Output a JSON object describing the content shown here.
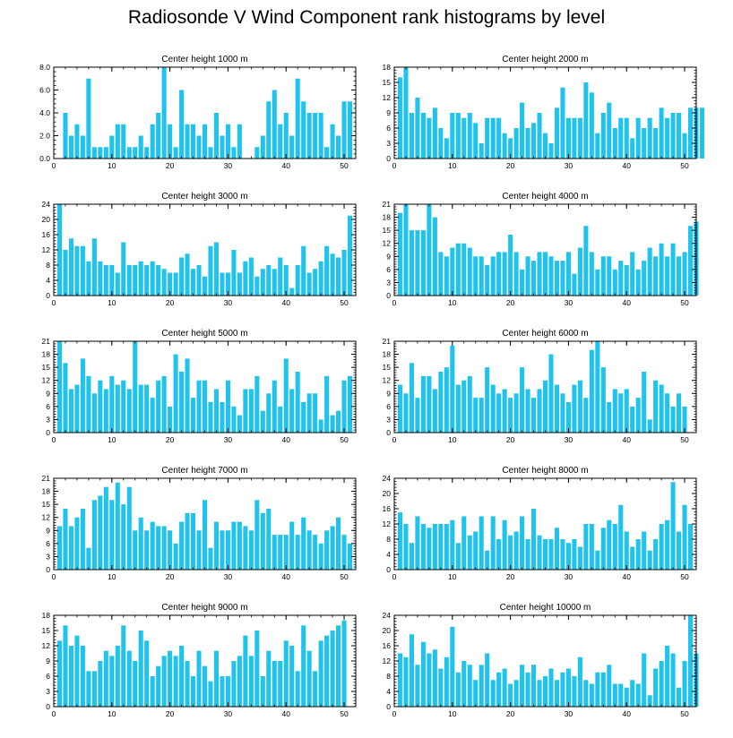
{
  "title": "Radiosonde V Wind Component rank histograms by level",
  "bar_color": "#1ec3ee",
  "chart_data": [
    {
      "type": "bar",
      "title": "Center height 1000 m",
      "xlabel": "",
      "ylabel": "",
      "xlim": [
        0,
        52
      ],
      "ylim": [
        0,
        8
      ],
      "yticks": [
        0,
        2,
        4,
        6,
        8
      ],
      "ytick_labels": [
        "0.0",
        "2.0",
        "4.0",
        "6.0",
        "8.0"
      ],
      "xticks": [
        0,
        10,
        20,
        30,
        40,
        50
      ],
      "values": [
        0,
        4,
        2,
        3,
        2,
        7,
        1,
        1,
        1,
        2,
        3,
        3,
        1,
        1,
        2,
        1,
        3,
        4,
        8,
        3,
        1,
        6,
        3,
        3,
        2,
        3,
        1,
        4,
        2,
        3,
        1,
        3,
        0,
        0,
        1,
        2,
        5,
        6,
        3,
        4,
        2,
        7,
        5,
        4,
        4,
        4,
        1,
        3,
        2,
        5,
        5
      ]
    },
    {
      "type": "bar",
      "title": "Center height 2000 m",
      "xlabel": "",
      "ylabel": "",
      "xlim": [
        0,
        52
      ],
      "ylim": [
        0,
        18
      ],
      "yticks": [
        0,
        3,
        6,
        9,
        12,
        15,
        18
      ],
      "ytick_labels": [
        "0",
        "3",
        "6",
        "9",
        "12",
        "15",
        "18"
      ],
      "xticks": [
        0,
        10,
        20,
        30,
        40,
        50
      ],
      "values": [
        16,
        18,
        9,
        12,
        9,
        8,
        10,
        6,
        4,
        9,
        9,
        8,
        9,
        7,
        3,
        8,
        8,
        8,
        5,
        4,
        6,
        11,
        6,
        7,
        9,
        5,
        3,
        10,
        14,
        8,
        8,
        8,
        15,
        13,
        5,
        9,
        11,
        6,
        8,
        8,
        4,
        8,
        6,
        8,
        6,
        10,
        8,
        9,
        9,
        5,
        10,
        10,
        10
      ]
    },
    {
      "type": "bar",
      "title": "Center height 3000 m",
      "xlabel": "",
      "ylabel": "",
      "xlim": [
        0,
        52
      ],
      "ylim": [
        0,
        24
      ],
      "yticks": [
        0,
        4,
        8,
        12,
        16,
        20,
        24
      ],
      "ytick_labels": [
        "0",
        "4",
        "8",
        "12",
        "16",
        "20",
        "24"
      ],
      "xticks": [
        0,
        10,
        20,
        30,
        40,
        50
      ],
      "values": [
        24,
        12,
        15,
        13,
        13,
        9,
        15,
        9,
        8,
        8,
        6,
        14,
        8,
        8,
        9,
        8,
        9,
        8,
        7,
        6,
        6,
        10,
        11,
        7,
        8,
        5,
        13,
        14,
        6,
        6,
        12,
        6,
        9,
        10,
        5,
        7,
        8,
        7,
        10,
        8,
        2,
        8,
        13,
        6,
        7,
        9,
        13,
        11,
        10,
        12,
        21
      ]
    },
    {
      "type": "bar",
      "title": "Center height 4000 m",
      "xlabel": "",
      "ylabel": "",
      "xlim": [
        0,
        52
      ],
      "ylim": [
        0,
        21
      ],
      "yticks": [
        0,
        3,
        6,
        9,
        12,
        15,
        18,
        21
      ],
      "ytick_labels": [
        "0",
        "3",
        "6",
        "9",
        "12",
        "15",
        "18",
        "21"
      ],
      "xticks": [
        0,
        10,
        20,
        30,
        40,
        50
      ],
      "values": [
        19,
        21,
        15,
        15,
        15,
        21,
        18,
        10,
        9,
        11,
        12,
        12,
        11,
        9,
        9,
        7,
        9,
        10,
        10,
        14,
        10,
        6,
        9,
        8,
        10,
        10,
        9,
        8,
        8,
        10,
        5,
        11,
        16,
        10,
        6,
        9,
        9,
        6,
        8,
        7,
        10,
        6,
        8,
        11,
        9,
        12,
        9,
        12,
        9,
        10,
        16,
        17
      ]
    },
    {
      "type": "bar",
      "title": "Center height 5000 m",
      "xlabel": "",
      "ylabel": "",
      "xlim": [
        0,
        52
      ],
      "ylim": [
        0,
        21
      ],
      "yticks": [
        0,
        3,
        6,
        9,
        12,
        15,
        18,
        21
      ],
      "ytick_labels": [
        "0",
        "3",
        "6",
        "9",
        "12",
        "15",
        "18",
        "21"
      ],
      "xticks": [
        0,
        10,
        20,
        30,
        40,
        50
      ],
      "values": [
        21,
        16,
        10,
        11,
        17,
        13,
        9,
        12,
        10,
        13,
        11,
        12,
        10,
        21,
        11,
        11,
        8,
        12,
        13,
        6,
        18,
        14,
        17,
        8,
        12,
        12,
        7,
        10,
        7,
        12,
        6,
        4,
        10,
        10,
        13,
        5,
        9,
        12,
        6,
        17,
        10,
        14,
        7,
        9,
        9,
        3,
        13,
        4,
        5,
        12,
        13
      ]
    },
    {
      "type": "bar",
      "title": "Center height 6000 m",
      "xlabel": "",
      "ylabel": "",
      "xlim": [
        0,
        52
      ],
      "ylim": [
        0,
        21
      ],
      "yticks": [
        0,
        3,
        6,
        9,
        12,
        15,
        18,
        21
      ],
      "ytick_labels": [
        "0",
        "3",
        "6",
        "9",
        "12",
        "15",
        "18",
        "21"
      ],
      "xticks": [
        0,
        10,
        20,
        30,
        40,
        50
      ],
      "values": [
        11,
        9,
        16,
        8,
        13,
        13,
        10,
        14,
        15,
        20,
        11,
        12,
        13,
        8,
        8,
        15,
        11,
        9,
        10,
        8,
        9,
        15,
        10,
        8,
        10,
        12,
        18,
        11,
        9,
        7,
        11,
        12,
        8,
        19,
        21,
        15,
        7,
        10,
        9,
        10,
        6,
        8,
        14,
        3,
        12,
        11,
        9,
        6,
        9,
        6
      ]
    },
    {
      "type": "bar",
      "title": "Center height 7000 m",
      "xlabel": "",
      "ylabel": "",
      "xlim": [
        0,
        52
      ],
      "ylim": [
        0,
        21
      ],
      "yticks": [
        0,
        3,
        6,
        9,
        12,
        15,
        18,
        21
      ],
      "ytick_labels": [
        "0",
        "3",
        "6",
        "9",
        "12",
        "15",
        "18",
        "21"
      ],
      "xticks": [
        0,
        10,
        20,
        30,
        40,
        50
      ],
      "values": [
        10,
        14,
        10,
        12,
        14,
        5,
        16,
        17,
        19,
        16,
        20,
        15,
        19,
        9,
        12,
        9,
        11,
        10,
        10,
        9,
        6,
        11,
        13,
        13,
        9,
        16,
        5,
        11,
        9,
        9,
        11,
        11,
        10,
        9,
        16,
        13,
        14,
        8,
        8,
        8,
        11,
        8,
        12,
        9,
        8,
        6,
        9,
        10,
        12,
        8,
        6
      ]
    },
    {
      "type": "bar",
      "title": "Center height 8000 m",
      "xlabel": "",
      "ylabel": "",
      "xlim": [
        0,
        52
      ],
      "ylim": [
        0,
        24
      ],
      "yticks": [
        0,
        4,
        8,
        12,
        16,
        20,
        24
      ],
      "ytick_labels": [
        "0",
        "4",
        "8",
        "12",
        "16",
        "20",
        "24"
      ],
      "xticks": [
        0,
        10,
        20,
        30,
        40,
        50
      ],
      "values": [
        15,
        12,
        7,
        14,
        12,
        11,
        12,
        12,
        12,
        13,
        7,
        14,
        9,
        10,
        14,
        5,
        14,
        8,
        13,
        9,
        10,
        14,
        8,
        16,
        9,
        8,
        8,
        11,
        8,
        7,
        8,
        6,
        12,
        12,
        5,
        11,
        13,
        12,
        17,
        10,
        6,
        8,
        10,
        5,
        8,
        12,
        13,
        23,
        10,
        17,
        12
      ]
    },
    {
      "type": "bar",
      "title": "Center height 9000 m",
      "xlabel": "",
      "ylabel": "",
      "xlim": [
        0,
        52
      ],
      "ylim": [
        0,
        18
      ],
      "yticks": [
        0,
        3,
        6,
        9,
        12,
        15,
        18
      ],
      "ytick_labels": [
        "0",
        "3",
        "6",
        "9",
        "12",
        "15",
        "18"
      ],
      "xticks": [
        0,
        10,
        20,
        30,
        40,
        50
      ],
      "values": [
        13,
        16,
        12,
        14,
        12,
        7,
        7,
        9,
        11,
        10,
        12,
        16,
        11,
        9,
        15,
        13,
        6,
        8,
        10,
        11,
        10,
        12,
        9,
        6,
        11,
        8,
        5,
        11,
        6,
        6,
        9,
        10,
        14,
        10,
        15,
        6,
        11,
        9,
        9,
        13,
        12,
        7,
        16,
        11,
        7,
        13,
        14,
        15,
        16,
        17
      ]
    },
    {
      "type": "bar",
      "title": "Center height 10000 m",
      "xlabel": "",
      "ylabel": "",
      "xlim": [
        0,
        52
      ],
      "ylim": [
        0,
        24
      ],
      "yticks": [
        0,
        4,
        8,
        12,
        16,
        20,
        24
      ],
      "ytick_labels": [
        "0",
        "4",
        "8",
        "12",
        "16",
        "20",
        "24"
      ],
      "xticks": [
        0,
        10,
        20,
        30,
        40,
        50
      ],
      "values": [
        14,
        13,
        19,
        11,
        17,
        14,
        15,
        10,
        13,
        21,
        9,
        12,
        11,
        7,
        11,
        14,
        7,
        9,
        10,
        6,
        7,
        11,
        9,
        11,
        7,
        8,
        10,
        7,
        9,
        10,
        8,
        13,
        7,
        6,
        9,
        9,
        11,
        6,
        6,
        5,
        7,
        6,
        14,
        3,
        10,
        12,
        16,
        14,
        5,
        12,
        24,
        14
      ]
    }
  ]
}
